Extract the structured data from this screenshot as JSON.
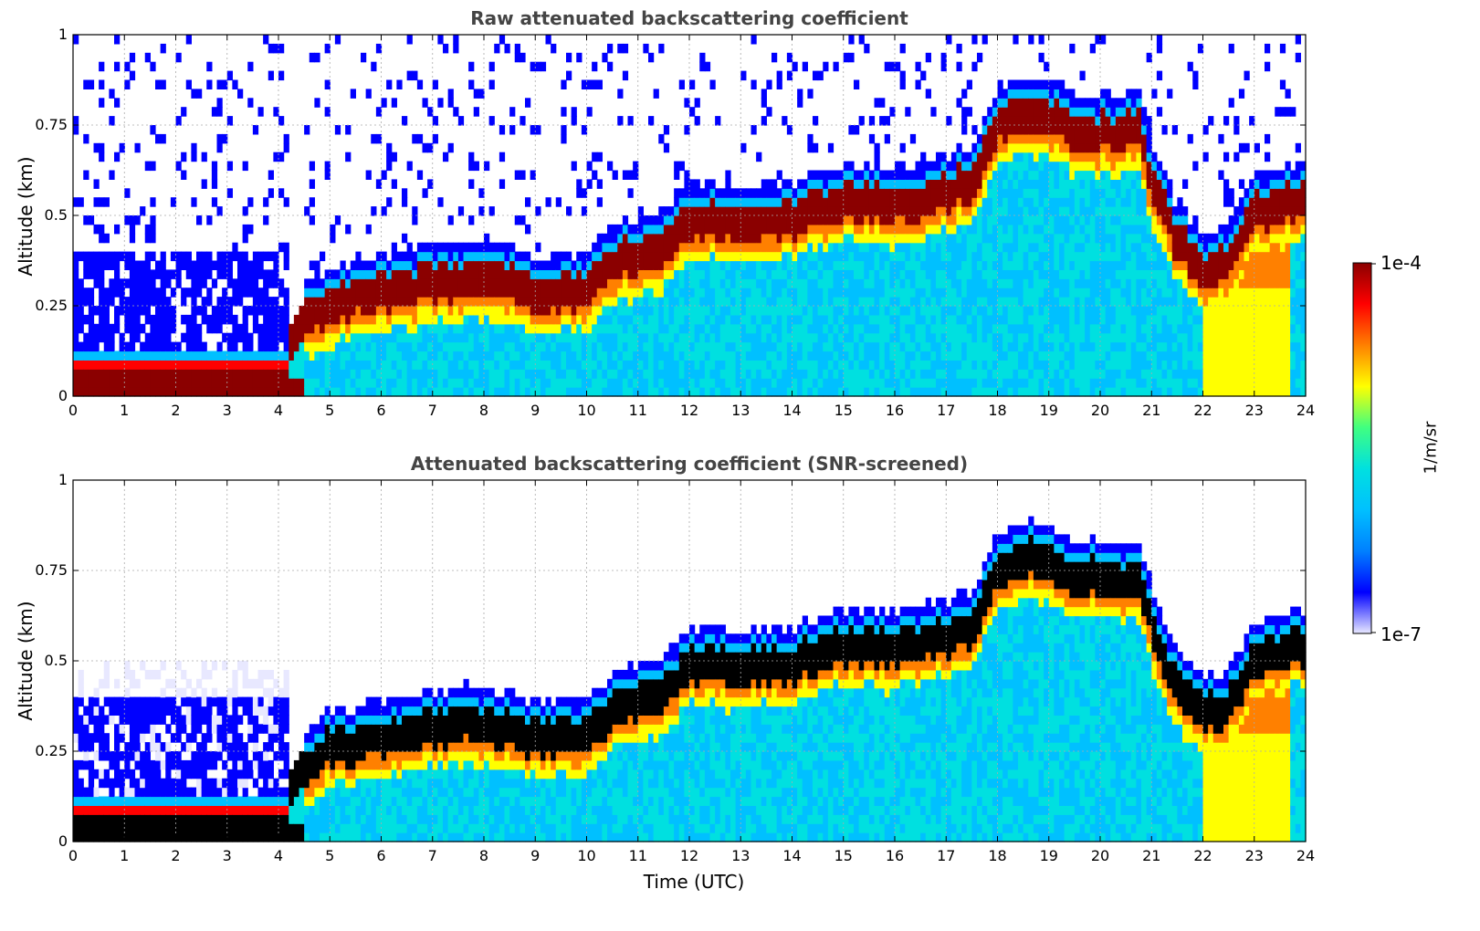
{
  "chart_data": [
    {
      "type": "heatmap",
      "id": "raw",
      "title": "Raw attenuated backscattering coefficient",
      "xlabel": "",
      "ylabel": "Altitude (km)",
      "xlim": [
        0,
        24
      ],
      "ylim": [
        0,
        1
      ],
      "x_ticks": [
        0,
        1,
        2,
        3,
        4,
        5,
        6,
        7,
        8,
        9,
        10,
        11,
        12,
        13,
        14,
        15,
        16,
        17,
        18,
        19,
        20,
        21,
        22,
        23,
        24
      ],
      "y_ticks": [
        0,
        0.25,
        0.5,
        0.75,
        1
      ],
      "y_tick_labels": [
        "0",
        "0.25",
        "0.5",
        "0.75",
        "1"
      ],
      "grid": true,
      "snr_screened": false,
      "layer_top_km": [
        [
          0,
          0.12
        ],
        [
          1,
          0.12
        ],
        [
          2,
          0.12
        ],
        [
          3,
          0.12
        ],
        [
          4,
          0.12
        ],
        [
          4.5,
          0.28
        ],
        [
          5,
          0.33
        ],
        [
          6,
          0.36
        ],
        [
          7,
          0.38
        ],
        [
          8,
          0.4
        ],
        [
          9,
          0.36
        ],
        [
          10,
          0.37
        ],
        [
          10.5,
          0.44
        ],
        [
          11,
          0.46
        ],
        [
          11.5,
          0.48
        ],
        [
          12,
          0.56
        ],
        [
          13,
          0.55
        ],
        [
          14,
          0.56
        ],
        [
          15,
          0.62
        ],
        [
          16,
          0.6
        ],
        [
          17,
          0.64
        ],
        [
          17.5,
          0.66
        ],
        [
          18,
          0.82
        ],
        [
          18.5,
          0.85
        ],
        [
          19,
          0.85
        ],
        [
          19.5,
          0.8
        ],
        [
          20,
          0.8
        ],
        [
          20.8,
          0.8
        ],
        [
          21,
          0.66
        ],
        [
          21.5,
          0.5
        ],
        [
          22,
          0.42
        ],
        [
          22.5,
          0.44
        ],
        [
          23,
          0.58
        ],
        [
          23.5,
          0.6
        ],
        [
          24,
          0.62
        ]
      ]
    },
    {
      "type": "heatmap",
      "id": "screened",
      "title": "Attenuated backscattering coefficient (SNR-screened)",
      "xlabel": "Time (UTC)",
      "ylabel": "Altitude (km)",
      "xlim": [
        0,
        24
      ],
      "ylim": [
        0,
        1
      ],
      "x_ticks": [
        0,
        1,
        2,
        3,
        4,
        5,
        6,
        7,
        8,
        9,
        10,
        11,
        12,
        13,
        14,
        15,
        16,
        17,
        18,
        19,
        20,
        21,
        22,
        23,
        24
      ],
      "y_ticks": [
        0,
        0.25,
        0.5,
        0.75,
        1
      ],
      "y_tick_labels": [
        "0",
        "0.25",
        "0.5",
        "0.75",
        "1"
      ],
      "grid": true,
      "snr_screened": true,
      "layer_top_km": [
        [
          0,
          0.12
        ],
        [
          1,
          0.12
        ],
        [
          2,
          0.12
        ],
        [
          3,
          0.12
        ],
        [
          4,
          0.12
        ],
        [
          4.5,
          0.28
        ],
        [
          5,
          0.33
        ],
        [
          6,
          0.36
        ],
        [
          7,
          0.38
        ],
        [
          8,
          0.4
        ],
        [
          9,
          0.36
        ],
        [
          10,
          0.37
        ],
        [
          10.5,
          0.44
        ],
        [
          11,
          0.46
        ],
        [
          11.5,
          0.48
        ],
        [
          12,
          0.56
        ],
        [
          13,
          0.55
        ],
        [
          14,
          0.56
        ],
        [
          15,
          0.62
        ],
        [
          16,
          0.6
        ],
        [
          17,
          0.64
        ],
        [
          17.5,
          0.66
        ],
        [
          18,
          0.82
        ],
        [
          18.5,
          0.85
        ],
        [
          19,
          0.85
        ],
        [
          19.5,
          0.8
        ],
        [
          20,
          0.8
        ],
        [
          20.8,
          0.8
        ],
        [
          21,
          0.66
        ],
        [
          21.5,
          0.5
        ],
        [
          22,
          0.42
        ],
        [
          22.5,
          0.44
        ],
        [
          23,
          0.58
        ],
        [
          23.5,
          0.6
        ],
        [
          24,
          0.62
        ]
      ]
    }
  ],
  "colorbar": {
    "max_label": "1e-4",
    "min_label": "1e-7",
    "unit": "1/m/sr",
    "colors": [
      "#e8e8ff",
      "#0000ff",
      "#0080ff",
      "#00c0ff",
      "#00e0e0",
      "#40ff80",
      "#ffff00",
      "#ff8000",
      "#ff0000",
      "#8b0000"
    ],
    "overflow_color_screened": "#000000"
  }
}
